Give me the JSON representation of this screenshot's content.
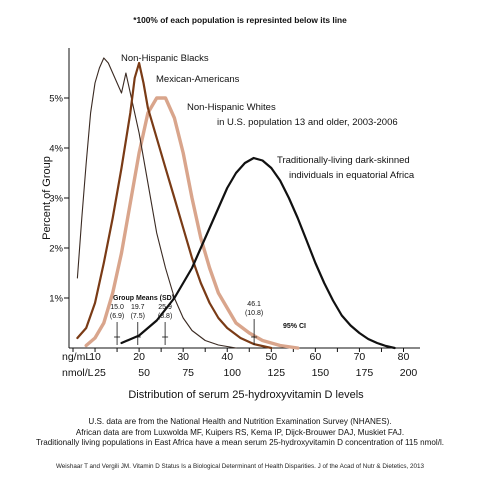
{
  "chart_data": {
    "type": "line",
    "title": "*100% of each population is represinted below its line",
    "ylabel": "Percent of Group",
    "xlabel": "Distribution of serum 25-hydroxyvitamin D levels",
    "x_units": [
      "ng/mL",
      "nmol/L"
    ],
    "xlim": [
      5,
      80
    ],
    "ylim": [
      0,
      6
    ],
    "x_ticks_ngml": [
      10,
      20,
      30,
      40,
      50,
      60,
      70,
      80
    ],
    "x_ticks_nmol": [
      25,
      50,
      75,
      100,
      125,
      150,
      175,
      200
    ],
    "y_ticks": [
      {
        "value": 1,
        "label": "1%"
      },
      {
        "value": 2,
        "label": "2%"
      },
      {
        "value": 3,
        "label": "3%"
      },
      {
        "value": 4,
        "label": "4%"
      },
      {
        "value": 5,
        "label": "5%"
      }
    ],
    "grid": false,
    "series": [
      {
        "name": "Non-Hispanic Blacks",
        "color": "#3a2a22",
        "x": [
          6,
          7,
          8,
          9,
          10,
          11,
          12,
          13,
          14,
          15,
          16,
          17,
          18,
          19,
          20,
          21,
          22,
          23,
          24,
          26,
          28,
          30,
          32,
          35,
          38,
          42
        ],
        "y": [
          1.4,
          2.6,
          3.7,
          4.7,
          5.3,
          5.6,
          5.8,
          5.7,
          5.5,
          5.3,
          5.1,
          5.5,
          5.1,
          4.7,
          4.3,
          3.8,
          3.3,
          2.8,
          2.3,
          1.6,
          1.0,
          0.6,
          0.35,
          0.15,
          0.06,
          0
        ]
      },
      {
        "name": "Mexican-Americans",
        "color": "#7a3b16",
        "x": [
          6,
          8,
          10,
          12,
          14,
          16,
          18,
          19,
          20,
          21,
          22,
          24,
          26,
          28,
          30,
          32,
          34,
          36,
          38,
          40,
          43,
          46,
          50
        ],
        "y": [
          0.2,
          0.4,
          0.9,
          1.7,
          2.6,
          3.6,
          4.7,
          5.4,
          5.7,
          5.3,
          4.8,
          4.2,
          3.6,
          3.0,
          2.4,
          1.8,
          1.3,
          0.9,
          0.6,
          0.4,
          0.2,
          0.08,
          0
        ]
      },
      {
        "name": "Non-Hispanic Whites",
        "name_line2": "in U.S. population 13 and older, 2003-2006",
        "color": "#d9a58c",
        "x": [
          8,
          10,
          12,
          14,
          16,
          18,
          20,
          22,
          24,
          26,
          28,
          30,
          32,
          34,
          36,
          38,
          40,
          42,
          45,
          48,
          52,
          56
        ],
        "y": [
          0.05,
          0.2,
          0.5,
          1.1,
          1.9,
          2.9,
          3.9,
          4.7,
          5.0,
          5.0,
          4.6,
          3.9,
          3.0,
          2.2,
          1.6,
          1.1,
          0.8,
          0.5,
          0.3,
          0.15,
          0.05,
          0
        ]
      },
      {
        "name": "Traditionally-living dark-skinned",
        "name_line2": "individuals in equatorial Africa",
        "color": "#111111",
        "x": [
          16,
          20,
          24,
          28,
          32,
          35,
          38,
          40,
          42,
          44,
          46,
          48,
          50,
          52,
          54,
          56,
          58,
          60,
          62,
          64,
          66,
          68,
          70,
          72,
          74,
          76,
          78
        ],
        "y": [
          0.1,
          0.25,
          0.55,
          1.0,
          1.6,
          2.2,
          2.8,
          3.2,
          3.5,
          3.7,
          3.8,
          3.75,
          3.6,
          3.35,
          3.0,
          2.6,
          2.15,
          1.7,
          1.3,
          0.95,
          0.65,
          0.45,
          0.3,
          0.18,
          0.1,
          0.04,
          0
        ]
      }
    ],
    "annotations": {
      "group_means_label": "Group Means (SD)",
      "ci_label": "95% CI",
      "means": [
        {
          "mean_label": "15.0",
          "sd_label": "(6.9)",
          "x": 15.0
        },
        {
          "mean_label": "19.7",
          "sd_label": "(7.5)",
          "x": 19.7
        },
        {
          "mean_label": "25.9",
          "sd_label": "(8.8)",
          "x": 25.9
        },
        {
          "mean_label": "46.1",
          "sd_label": "(10.8)",
          "x": 46.1
        }
      ]
    }
  },
  "footer": {
    "lines": [
      "U.S. data are from the National Health and Nutrition Examination Survey (NHANES).",
      "African data are from Luxwolda MF, Kuipers RS, Kema IP, Dijck-Brouwer DAJ, Muskiet FAJ.",
      "Traditionally living populations in East Africa have a mean serum 25-hydroxyvitamin D concentration of 115 nmol/l."
    ],
    "citation": "Weishaar T and Vergili JM. Vitamin D Status Is a Biological Determinant of Health Disparities. J of the Acad of Nutr & Dietetics, 2013"
  }
}
